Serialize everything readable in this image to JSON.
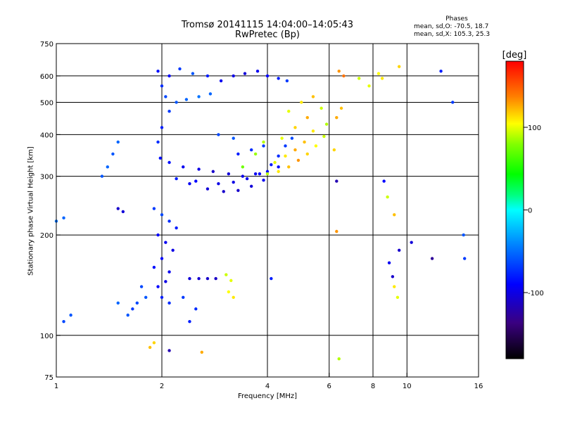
{
  "header": {
    "title_line1": "Tromsø 20141115 14:04:00–14:05:43",
    "title_line2": "RwPretec (Bp)"
  },
  "phases": {
    "title": "Phases",
    "o_line": "mean, sd,O: -70.5, 18.7",
    "x_line": "mean, sd,X: 105.3, 25.3"
  },
  "chart_data": {
    "type": "scatter",
    "title": "Tromsø 20141115 14:04:00–14:05:43",
    "subtitle": "RwPretec (Bp)",
    "xlabel": "Frequency [MHz]",
    "ylabel": "Stationary phase Virtual Height [km]",
    "x_scale": "log",
    "y_scale": "log",
    "xlim": [
      1,
      16
    ],
    "ylim": [
      75,
      750
    ],
    "x_ticks": [
      1,
      2,
      4,
      6,
      8,
      10,
      16
    ],
    "y_ticks": [
      75,
      100,
      200,
      300,
      400,
      500,
      600,
      750
    ],
    "x_grid": [
      2,
      4,
      6,
      8,
      10
    ],
    "y_grid": [
      100,
      200,
      300,
      400,
      500,
      600
    ],
    "grid": true,
    "colorbar": {
      "label": "[deg]",
      "range": [
        -180,
        180
      ],
      "ticks": [
        -100,
        0,
        100
      ]
    },
    "series": [
      {
        "name": "",
        "points": [
          [
            1.95,
            620,
            -85
          ],
          [
            2.1,
            600,
            -90
          ],
          [
            2.25,
            630,
            -70
          ],
          [
            2.45,
            610,
            -60
          ],
          [
            2.7,
            600,
            -80
          ],
          [
            2.95,
            580,
            -95
          ],
          [
            3.2,
            600,
            -100
          ],
          [
            3.45,
            610,
            -105
          ],
          [
            3.75,
            620,
            -95
          ],
          [
            4.0,
            600,
            -90
          ],
          [
            4.3,
            590,
            -80
          ],
          [
            4.55,
            580,
            -70
          ],
          [
            2.0,
            560,
            -75
          ],
          [
            2.05,
            520,
            -65
          ],
          [
            2.2,
            500,
            -60
          ],
          [
            2.35,
            510,
            -55
          ],
          [
            2.55,
            520,
            -50
          ],
          [
            2.75,
            530,
            -55
          ],
          [
            2.1,
            470,
            -70
          ],
          [
            2.0,
            420,
            -80
          ],
          [
            1.95,
            380,
            -75
          ],
          [
            1.98,
            340,
            -85
          ]
        ],
        "colors": "phase"
      },
      {
        "name": "",
        "points": [
          [
            2.1,
            330,
            -85
          ],
          [
            2.3,
            320,
            -95
          ],
          [
            2.55,
            315,
            -100
          ],
          [
            2.8,
            310,
            -110
          ],
          [
            3.1,
            305,
            -105
          ],
          [
            3.4,
            300,
            -100
          ],
          [
            3.7,
            305,
            -95
          ],
          [
            4.0,
            310,
            -90
          ],
          [
            4.3,
            320,
            -85
          ],
          [
            2.4,
            285,
            -95
          ],
          [
            2.7,
            275,
            -105
          ],
          [
            3.0,
            270,
            -110
          ],
          [
            3.3,
            272,
            -110
          ],
          [
            3.6,
            280,
            -105
          ],
          [
            3.9,
            292,
            -95
          ],
          [
            2.2,
            295,
            -80
          ],
          [
            2.5,
            290,
            -90
          ],
          [
            2.9,
            285,
            -100
          ],
          [
            3.2,
            288,
            -100
          ],
          [
            3.5,
            295,
            -95
          ],
          [
            3.8,
            305,
            -90
          ],
          [
            4.1,
            325,
            -80
          ],
          [
            4.3,
            345,
            -75
          ],
          [
            4.5,
            370,
            -70
          ],
          [
            4.7,
            390,
            -65
          ],
          [
            3.3,
            350,
            -80
          ],
          [
            3.6,
            360,
            -75
          ],
          [
            3.9,
            370,
            -70
          ],
          [
            2.9,
            400,
            -65
          ],
          [
            3.2,
            390,
            -60
          ]
        ],
        "colors": "phase"
      },
      {
        "name": "",
        "points": [
          [
            4.0,
            305,
            90
          ],
          [
            4.3,
            310,
            110
          ],
          [
            4.6,
            320,
            120
          ],
          [
            4.9,
            335,
            130
          ],
          [
            5.2,
            350,
            115
          ],
          [
            5.5,
            370,
            105
          ],
          [
            5.8,
            395,
            95
          ],
          [
            4.2,
            330,
            100
          ],
          [
            4.5,
            345,
            110
          ],
          [
            4.8,
            360,
            125
          ],
          [
            5.1,
            380,
            120
          ],
          [
            5.4,
            410,
            110
          ],
          [
            4.4,
            390,
            100
          ],
          [
            4.8,
            420,
            115
          ],
          [
            5.2,
            450,
            125
          ],
          [
            4.6,
            470,
            100
          ],
          [
            5.0,
            500,
            110
          ],
          [
            5.4,
            520,
            120
          ],
          [
            5.7,
            480,
            95
          ],
          [
            5.9,
            430,
            90
          ],
          [
            3.4,
            320,
            75
          ],
          [
            3.7,
            350,
            85
          ],
          [
            3.9,
            380,
            90
          ]
        ],
        "colors": "phase"
      },
      {
        "name": "",
        "points": [
          [
            1.9,
            240,
            -70
          ],
          [
            2.0,
            230,
            -65
          ],
          [
            2.1,
            220,
            -75
          ],
          [
            2.2,
            210,
            -80
          ],
          [
            1.95,
            200,
            -90
          ],
          [
            2.05,
            190,
            -95
          ],
          [
            2.15,
            180,
            -100
          ],
          [
            2.0,
            170,
            -90
          ],
          [
            1.9,
            160,
            -85
          ],
          [
            2.1,
            155,
            -95
          ],
          [
            2.05,
            145,
            -100
          ],
          [
            1.95,
            140,
            -90
          ],
          [
            2.0,
            130,
            -80
          ],
          [
            2.1,
            125,
            -75
          ],
          [
            2.3,
            130,
            -70
          ],
          [
            2.5,
            120,
            -75
          ],
          [
            2.4,
            110,
            -80
          ],
          [
            1.8,
            130,
            -60
          ],
          [
            1.7,
            125,
            -65
          ],
          [
            1.65,
            120,
            -70
          ],
          [
            1.5,
            125,
            -55
          ],
          [
            1.6,
            115,
            -60
          ],
          [
            1.75,
            140,
            -65
          ]
        ],
        "colors": "phase"
      },
      {
        "name": "",
        "points": [
          [
            2.4,
            148,
            -105
          ],
          [
            2.55,
            148,
            -108
          ],
          [
            2.7,
            148,
            -110
          ],
          [
            2.85,
            148,
            -112
          ],
          [
            3.05,
            152,
            95
          ],
          [
            3.15,
            146,
            100
          ],
          [
            3.1,
            135,
            105
          ],
          [
            3.2,
            130,
            110
          ],
          [
            1.05,
            110,
            -65
          ],
          [
            1.1,
            115,
            -60
          ],
          [
            1.0,
            220,
            -50
          ],
          [
            1.05,
            225,
            -55
          ],
          [
            1.5,
            240,
            -110
          ],
          [
            1.55,
            235,
            -105
          ],
          [
            1.35,
            300,
            -60
          ],
          [
            1.4,
            320,
            -55
          ],
          [
            1.45,
            350,
            -60
          ],
          [
            1.5,
            380,
            -55
          ]
        ],
        "colors": "phase"
      },
      {
        "name": "",
        "points": [
          [
            1.85,
            92,
            120
          ],
          [
            1.9,
            95,
            115
          ],
          [
            2.1,
            90,
            -120
          ],
          [
            2.6,
            89,
            125
          ],
          [
            6.4,
            620,
            130
          ],
          [
            6.6,
            600,
            140
          ],
          [
            7.3,
            590,
            95
          ],
          [
            7.8,
            560,
            100
          ],
          [
            8.3,
            610,
            105
          ],
          [
            8.5,
            590,
            110
          ],
          [
            9.5,
            640,
            115
          ],
          [
            12.5,
            620,
            -80
          ],
          [
            13.5,
            500,
            -70
          ],
          [
            6.5,
            480,
            120
          ],
          [
            6.3,
            450,
            125
          ],
          [
            6.2,
            360,
            115
          ],
          [
            6.3,
            290,
            -120
          ],
          [
            8.6,
            290,
            -90
          ],
          [
            8.8,
            260,
            95
          ],
          [
            9.2,
            230,
            120
          ],
          [
            9.5,
            180,
            -110
          ],
          [
            10.3,
            190,
            -105
          ],
          [
            11.8,
            170,
            -130
          ],
          [
            14.5,
            200,
            -60
          ],
          [
            14.6,
            170,
            -70
          ],
          [
            6.3,
            205,
            130
          ],
          [
            6.4,
            85,
            90
          ],
          [
            9.2,
            140,
            110
          ],
          [
            9.4,
            130,
            100
          ],
          [
            9.1,
            150,
            -110
          ],
          [
            8.9,
            165,
            -95
          ],
          [
            4.1,
            148,
            -80
          ]
        ],
        "colors": "phase"
      }
    ]
  }
}
